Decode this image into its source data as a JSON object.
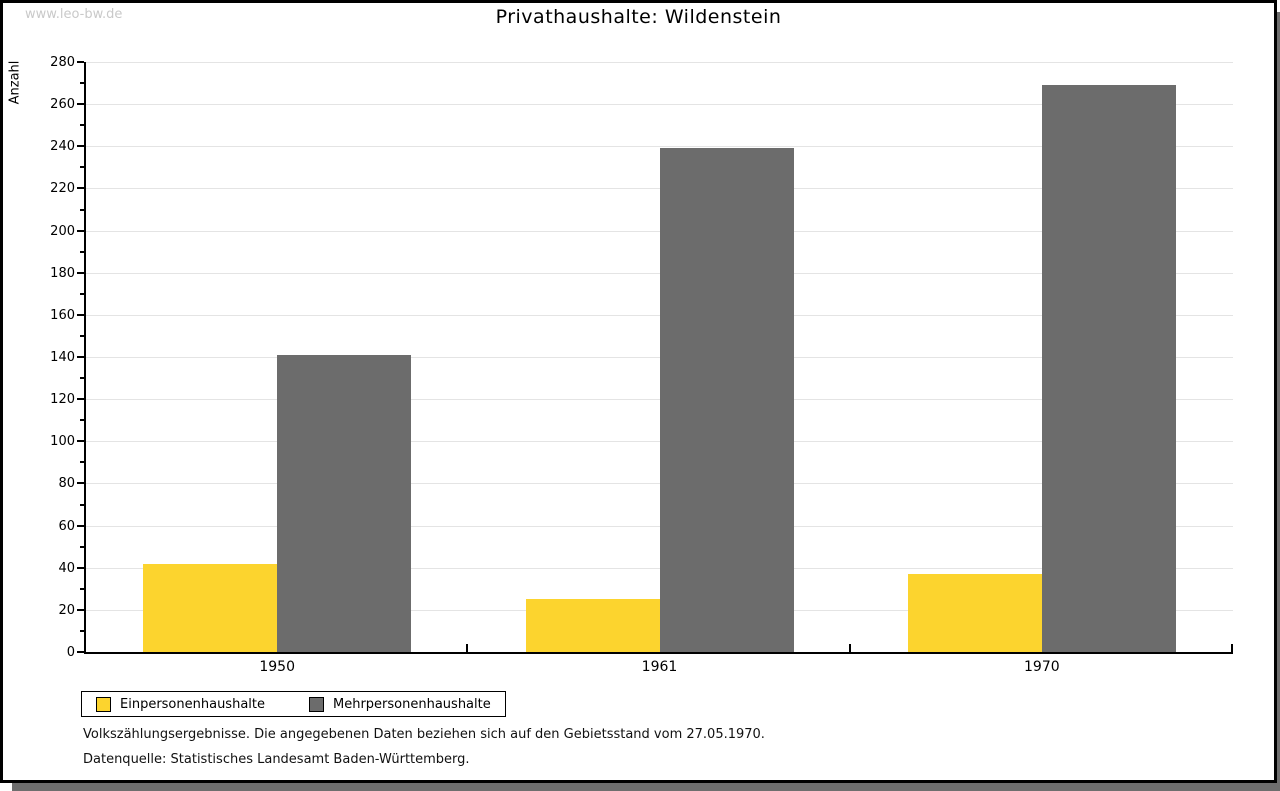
{
  "watermark": "www.leo-bw.de",
  "header": {
    "title": "Privathaushalte: Wildenstein"
  },
  "chart_data": {
    "type": "bar",
    "title": "Privathaushalte: Wildenstein",
    "categories": [
      "1950",
      "1961",
      "1970"
    ],
    "series": [
      {
        "name": "Einpersonenhaushalte",
        "color": "#FCD42E",
        "values": [
          42,
          25,
          37
        ]
      },
      {
        "name": "Mehrpersonenhaushalte",
        "color": "#6C6C6C",
        "values": [
          141,
          239,
          269
        ]
      }
    ],
    "xlabel": "",
    "ylabel": "Anzahl",
    "ylim": [
      0,
      280
    ],
    "ytick_step": 20,
    "yminor_step": 10,
    "grid": true,
    "legend_position": "bottom-left"
  },
  "footer": {
    "note": "Volkszählungsergebnisse. Die angegebenen Daten beziehen sich auf den Gebietsstand vom 27.05.1970.",
    "source": "Datenquelle: Statistisches Landesamt Baden-Württemberg."
  },
  "colors": {
    "grid": "#E4E4E4",
    "axis": "#000000",
    "shadow": "#6E6E6E",
    "watermark": "#C9C9C9",
    "bar_yellow": "#FCD42E",
    "bar_gray": "#6C6C6C"
  }
}
